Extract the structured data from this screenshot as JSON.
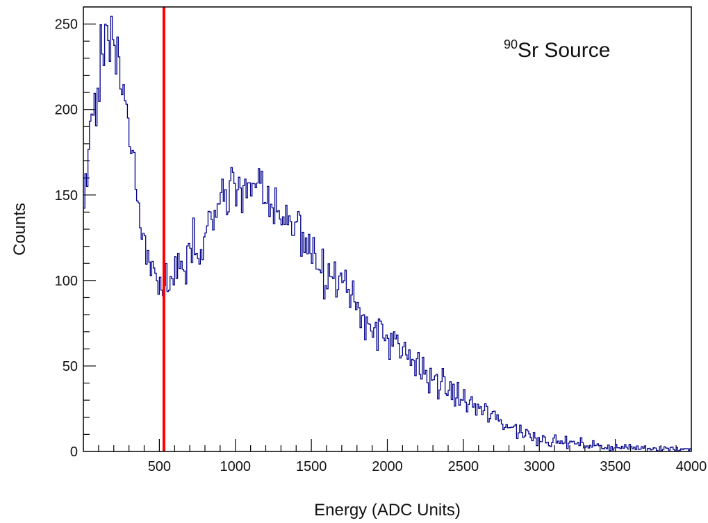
{
  "chart_data": {
    "type": "line",
    "style": "histogram-step",
    "xlabel": "Energy  (ADC Units)",
    "ylabel": "Counts",
    "xlim": [
      0,
      4000
    ],
    "ylim": [
      0,
      260
    ],
    "x_ticks": [
      500,
      1000,
      1500,
      2000,
      2500,
      3000,
      3500,
      4000
    ],
    "y_ticks": [
      0,
      50,
      100,
      150,
      200,
      250
    ],
    "grid": false,
    "legend": "none",
    "annotation": {
      "isotope": "90",
      "label": "Sr Source",
      "position": "top-right"
    },
    "threshold": {
      "x": 530,
      "color": "#ff0000"
    },
    "series_color": "#00008b",
    "bin_width": 10,
    "envelope": [
      [
        0,
        140
      ],
      [
        20,
        160
      ],
      [
        50,
        185
      ],
      [
        80,
        205
      ],
      [
        100,
        222
      ],
      [
        130,
        232
      ],
      [
        160,
        238
      ],
      [
        190,
        240
      ],
      [
        220,
        236
      ],
      [
        250,
        222
      ],
      [
        280,
        200
      ],
      [
        310,
        175
      ],
      [
        350,
        150
      ],
      [
        400,
        125
      ],
      [
        440,
        110
      ],
      [
        480,
        103
      ],
      [
        530,
        100
      ],
      [
        560,
        98
      ],
      [
        600,
        100
      ],
      [
        650,
        107
      ],
      [
        700,
        115
      ],
      [
        760,
        123
      ],
      [
        800,
        130
      ],
      [
        850,
        139
      ],
      [
        900,
        146
      ],
      [
        950,
        150
      ],
      [
        1000,
        152
      ],
      [
        1050,
        153
      ],
      [
        1100,
        152
      ],
      [
        1150,
        151
      ],
      [
        1200,
        149
      ],
      [
        1250,
        146
      ],
      [
        1300,
        142
      ],
      [
        1350,
        137
      ],
      [
        1400,
        132
      ],
      [
        1450,
        126
      ],
      [
        1500,
        120
      ],
      [
        1550,
        113
      ],
      [
        1600,
        106
      ],
      [
        1700,
        95
      ],
      [
        1800,
        84
      ],
      [
        1900,
        74
      ],
      [
        2000,
        65
      ],
      [
        2100,
        57
      ],
      [
        2200,
        50
      ],
      [
        2300,
        43
      ],
      [
        2400,
        36
      ],
      [
        2500,
        30
      ],
      [
        2600,
        25
      ],
      [
        2700,
        20
      ],
      [
        2800,
        15
      ],
      [
        2900,
        11
      ],
      [
        3000,
        8
      ],
      [
        3100,
        6
      ],
      [
        3200,
        5
      ],
      [
        3300,
        4
      ],
      [
        3400,
        3
      ],
      [
        3500,
        2.5
      ],
      [
        3700,
        2
      ],
      [
        4000,
        1.5
      ]
    ]
  }
}
